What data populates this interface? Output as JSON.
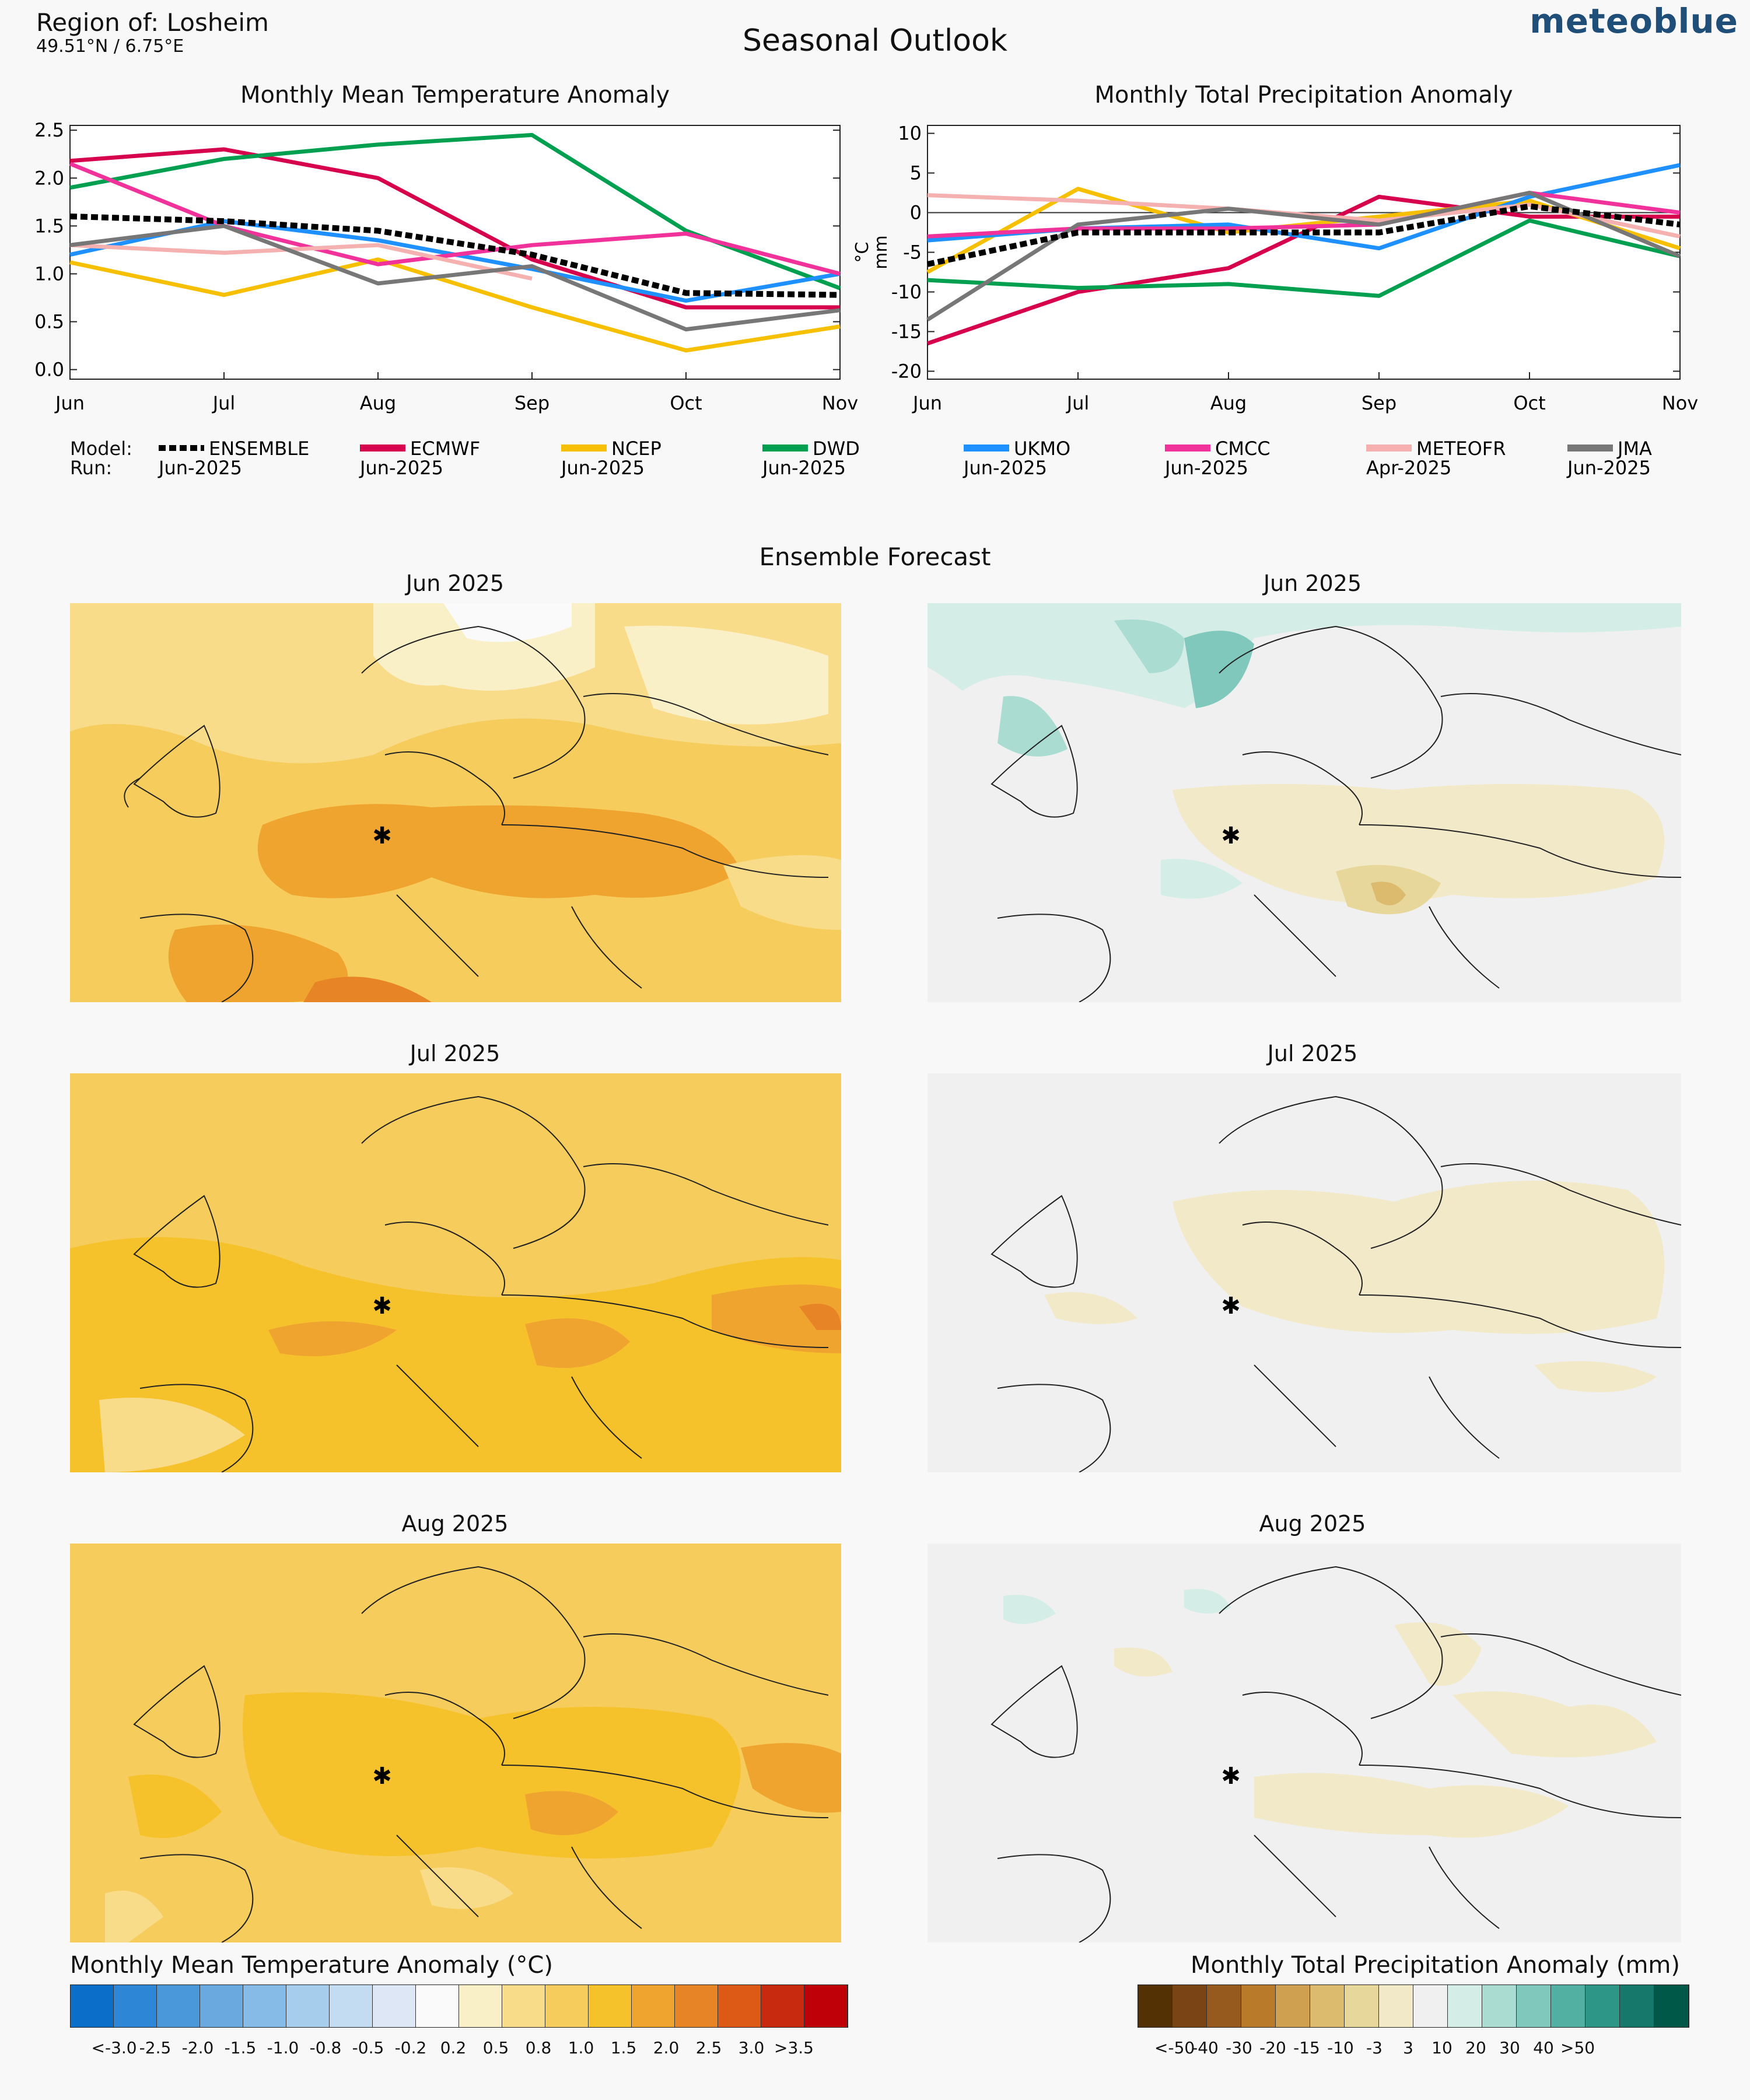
{
  "header": {
    "region": "Region of: Losheim",
    "coords": "49.51°N / 6.75°E",
    "title": "Seasonal Outlook",
    "brand": "meteoblue"
  },
  "chart_data": [
    {
      "type": "line",
      "title": "Monthly Mean Temperature Anomaly",
      "ylabel": "°C",
      "x": [
        "Jun",
        "Jul",
        "Aug",
        "Sep",
        "Oct",
        "Nov"
      ],
      "ylim": [
        -0.1,
        2.55
      ],
      "yticks": [
        "0.0",
        "0.5",
        "1.0",
        "1.5",
        "2.0",
        "2.5"
      ],
      "series": [
        {
          "name": "ENSEMBLE",
          "color": "#000000",
          "dashed": true,
          "values": [
            1.6,
            1.55,
            1.45,
            1.2,
            0.8,
            0.78
          ]
        },
        {
          "name": "ECMWF",
          "color": "#d6004c",
          "values": [
            2.18,
            2.3,
            2.0,
            1.15,
            0.65,
            0.65
          ]
        },
        {
          "name": "NCEP",
          "color": "#f6c000",
          "values": [
            1.12,
            0.78,
            1.15,
            0.65,
            0.2,
            0.45
          ]
        },
        {
          "name": "DWD",
          "color": "#00a050",
          "values": [
            1.9,
            2.2,
            2.35,
            2.45,
            1.45,
            0.85
          ]
        },
        {
          "name": "UKMO",
          "color": "#1e90ff",
          "values": [
            1.2,
            1.55,
            1.35,
            1.05,
            0.72,
            1.0
          ]
        },
        {
          "name": "CMCC",
          "color": "#f0329a",
          "values": [
            2.15,
            1.5,
            1.1,
            1.3,
            1.42,
            1.0
          ]
        },
        {
          "name": "METEOFR",
          "color": "#f5b0b0",
          "values": [
            1.3,
            1.22,
            1.3,
            0.95,
            null,
            null
          ]
        },
        {
          "name": "JMA",
          "color": "#777777",
          "values": [
            1.3,
            1.5,
            0.9,
            1.08,
            0.42,
            0.62
          ]
        }
      ]
    },
    {
      "type": "line",
      "title": "Monthly Total Precipitation Anomaly",
      "ylabel": "mm",
      "x": [
        "Jun",
        "Jul",
        "Aug",
        "Sep",
        "Oct",
        "Nov"
      ],
      "ylim": [
        -21,
        11
      ],
      "yticks": [
        "-20",
        "-15",
        "-10",
        "-5",
        "0",
        "5",
        "10"
      ],
      "series": [
        {
          "name": "ENSEMBLE",
          "color": "#000000",
          "dashed": true,
          "values": [
            -6.5,
            -2.5,
            -2.5,
            -2.5,
            0.8,
            -1.5
          ]
        },
        {
          "name": "ECMWF",
          "color": "#d6004c",
          "values": [
            -16.5,
            -10,
            -7,
            2,
            -0.5,
            -0.5
          ]
        },
        {
          "name": "NCEP",
          "color": "#f6c000",
          "values": [
            -7.5,
            3,
            -2.5,
            -0.5,
            1.5,
            -4.5
          ]
        },
        {
          "name": "DWD",
          "color": "#00a050",
          "values": [
            -8.5,
            -9.5,
            -9,
            -10.5,
            -1,
            -5.5
          ]
        },
        {
          "name": "UKMO",
          "color": "#1e90ff",
          "values": [
            -3.5,
            -2,
            -1.5,
            -4.5,
            2,
            6
          ]
        },
        {
          "name": "CMCC",
          "color": "#f0329a",
          "values": [
            -3,
            -2,
            -2,
            -1.5,
            2.5,
            0
          ]
        },
        {
          "name": "METEOFR",
          "color": "#f5b0b0",
          "values": [
            2.2,
            1.5,
            0.5,
            -1,
            1,
            -3
          ]
        },
        {
          "name": "JMA",
          "color": "#777777",
          "values": [
            -13.5,
            -1.5,
            0.5,
            -1.5,
            2.5,
            -5.5
          ]
        }
      ]
    }
  ],
  "legend": {
    "model_label": "Model:",
    "run_label": "Run:",
    "items": [
      {
        "name": "ENSEMBLE",
        "run": "Jun-2025"
      },
      {
        "name": "ECMWF",
        "run": "Jun-2025"
      },
      {
        "name": "NCEP",
        "run": "Jun-2025"
      },
      {
        "name": "DWD",
        "run": "Jun-2025"
      },
      {
        "name": "UKMO",
        "run": "Jun-2025"
      },
      {
        "name": "CMCC",
        "run": "Jun-2025"
      },
      {
        "name": "METEOFR",
        "run": "Apr-2025"
      },
      {
        "name": "JMA",
        "run": "Jun-2025"
      }
    ]
  },
  "ensemble": {
    "title": "Ensemble Forecast",
    "months": [
      "Jun 2025",
      "Jul 2025",
      "Aug 2025"
    ]
  },
  "colorbars": {
    "temp": {
      "title": "Monthly Mean Temperature Anomaly (°C)",
      "colors": [
        "#0b6fc9",
        "#2e87d6",
        "#4a98da",
        "#6aa9df",
        "#85bbe6",
        "#a6cdec",
        "#c3dcf1",
        "#dee7f6",
        "#fafafa",
        "#faf0c8",
        "#f8dc8a",
        "#f6cd5c",
        "#f6c22c",
        "#f0a430",
        "#e68426",
        "#dc5a16",
        "#c82a10",
        "#c00008"
      ],
      "labels": [
        "<-3.0",
        "-2.5",
        "-2.0",
        "-1.5",
        "-1.0",
        "-0.8",
        "-0.5",
        "-0.2",
        "0.2",
        "0.5",
        "0.8",
        "1.0",
        "1.5",
        "2.0",
        "2.5",
        "3.0",
        ">3.5"
      ]
    },
    "precip": {
      "title": "Monthly Total Precipitation Anomaly (mm)",
      "colors": [
        "#543005",
        "#7b4414",
        "#975a1e",
        "#b97a2a",
        "#cfa050",
        "#dcba6e",
        "#e8d79a",
        "#f2e9c9",
        "#f0f0f0",
        "#d4ede6",
        "#aadcd2",
        "#80c8bc",
        "#52b0a2",
        "#2e9686",
        "#16786a",
        "#005848"
      ],
      "labels": [
        "<-50",
        "-40",
        "-30",
        "-20",
        "-15",
        "-10",
        "-3",
        "3",
        "10",
        "20",
        "30",
        "40",
        ">50"
      ]
    }
  }
}
